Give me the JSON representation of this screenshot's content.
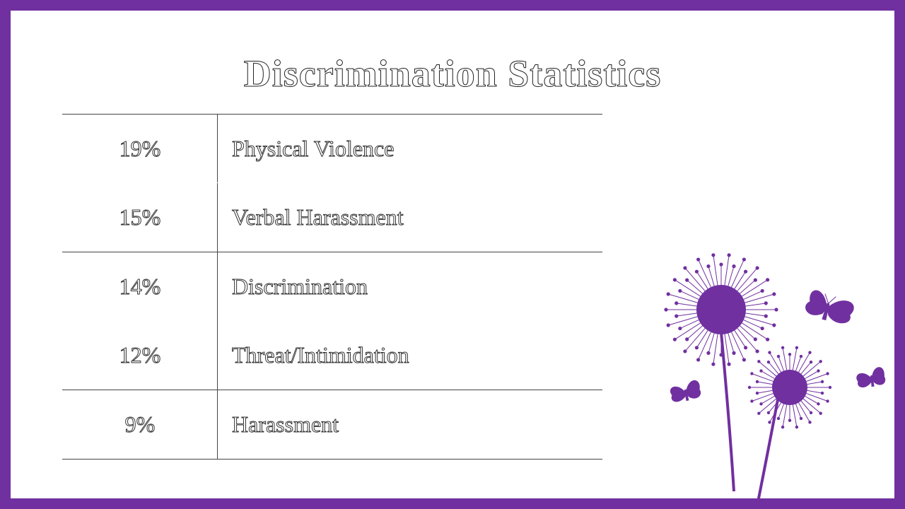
{
  "slide": {
    "title": "Discrimination Statistics",
    "accent_color": "#7030a0",
    "rows": [
      {
        "percent": "19%",
        "label": "Physical Violence"
      },
      {
        "percent": "15%",
        "label": "Verbal Harassment"
      },
      {
        "percent": "14%",
        "label": "Discrimination"
      },
      {
        "percent": "12%",
        "label": "Threat/Intimidation"
      },
      {
        "percent": "9%",
        "label": "Harassment"
      }
    ],
    "decoration": {
      "icons": [
        "dandelion-icon",
        "butterfly-icon"
      ]
    }
  }
}
